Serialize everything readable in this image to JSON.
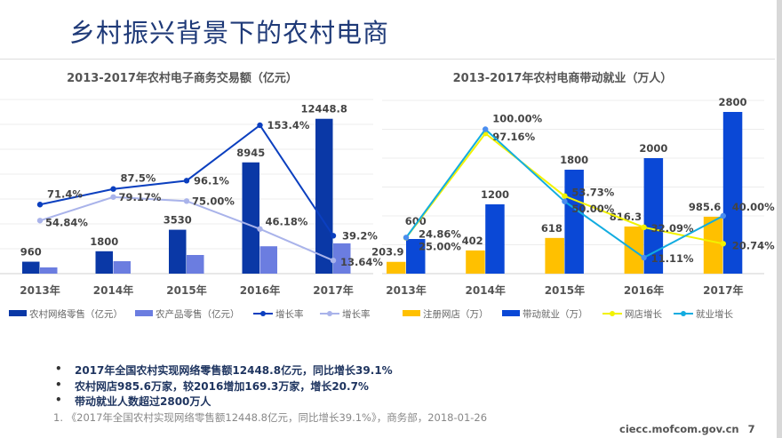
{
  "page_title": "乡村振兴背景下的农村电商",
  "chart_data": [
    {
      "type": "bar+line",
      "title": "2013-2017年农村电子商务交易额（亿元）",
      "categories": [
        "2013年",
        "2014年",
        "2015年",
        "2016年",
        "2017年"
      ],
      "ylim": [
        0,
        14000
      ],
      "y2lim": [
        0,
        180
      ],
      "grid": true,
      "legend": "bottom",
      "bars": [
        {
          "name": "农村网络零售（亿元）",
          "values": [
            960,
            1800,
            3530,
            8945,
            12448.8
          ],
          "labels": [
            "960",
            "1800",
            "3530",
            "8945",
            "12448.8"
          ],
          "color": "#0a38a6"
        },
        {
          "name": "农产品零售（亿元）",
          "values": [
            500,
            1000,
            1500,
            2200,
            2436
          ],
          "labels": null,
          "color": "#6b7de0"
        }
      ],
      "lines": [
        {
          "name": "增长率",
          "values": [
            71.4,
            87.5,
            96.1,
            153.4,
            39.2
          ],
          "labels": [
            "71.4%",
            "87.5%",
            "96.1%",
            "153.4%",
            "39.2%"
          ],
          "color": "#0b3fbf"
        },
        {
          "name": "增长率",
          "values": [
            54.84,
            79.17,
            75.0,
            46.18,
            13.64
          ],
          "labels": [
            "54.84%",
            "79.17%",
            "75.00%",
            "46.18%",
            "13.64%"
          ],
          "color": "#a9b3ea"
        }
      ]
    },
    {
      "type": "bar+line",
      "title": "2013-2017年农村电商带动就业（万人）",
      "categories": [
        "2013年",
        "2014年",
        "2015年",
        "2016年",
        "2017年"
      ],
      "ylim": [
        0,
        3000
      ],
      "y2lim": [
        0,
        120
      ],
      "grid": true,
      "legend": "bottom",
      "bars": [
        {
          "name": "注册网店（万）",
          "values": [
            203.9,
            402,
            618,
            816.3,
            985.6
          ],
          "labels": [
            "203.9",
            "402",
            "618",
            "816.3",
            "985.6"
          ],
          "color": "#ffc000"
        },
        {
          "name": "带动就业（万）",
          "values": [
            600,
            1200,
            1800,
            2000,
            2800
          ],
          "labels": [
            "600",
            "1200",
            "1800",
            "2000",
            "2800"
          ],
          "color": "#0a48d6"
        }
      ],
      "lines": [
        {
          "name": "网店增长",
          "values": [
            24.86,
            97.16,
            53.73,
            32.09,
            20.74
          ],
          "labels": [
            "24.86%",
            "97.16%",
            "53.73%",
            "32.09%",
            "20.74%"
          ],
          "color": "#f2f200"
        },
        {
          "name": "就业增长",
          "values": [
            25.0,
            100.0,
            50.0,
            11.11,
            40.0
          ],
          "labels": [
            "25.00%",
            "100.00%",
            "50.00%",
            "11.11%",
            "40.00%"
          ],
          "color": "#12ace0"
        }
      ]
    }
  ],
  "bullets": [
    "2017年全国农村实现网络零售额12448.8亿元，同比增长39.1%",
    "农村网店985.6万家，较2016增加169.3万家，增长20.7%",
    "带动就业人数超过2800万人"
  ],
  "footnote": "1.  《2017年全国农村实现网络零售额12448.8亿元，同比增长39.1%》，商务部，2018-01-26",
  "footer": {
    "site": "ciecc.mofcom.gov.cn",
    "page_number": "7"
  }
}
